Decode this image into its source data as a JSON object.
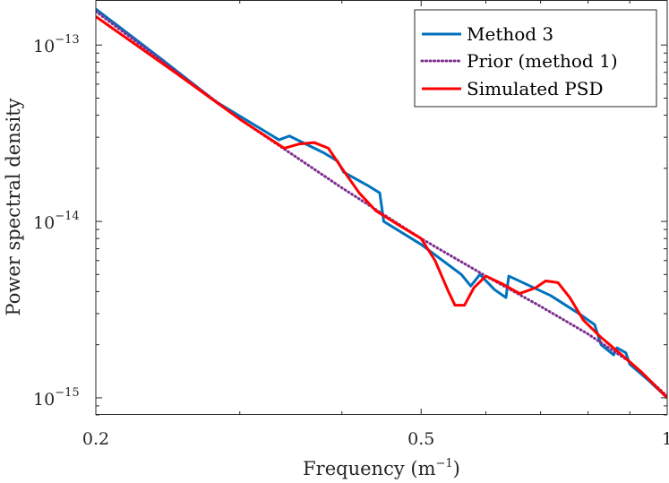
{
  "chart_data": {
    "type": "line",
    "xlabel": "Frequency",
    "xlabel_unit_base": "m",
    "xlabel_unit_exp": "−1",
    "ylabel": "Power spectral density",
    "xscale": "log",
    "yscale": "log",
    "xlim": [
      0.2,
      1.0
    ],
    "ylim": [
      8e-16,
      1.8e-13
    ],
    "grid": false,
    "legend_position": "top-right",
    "x_ticks": [
      {
        "value": 0.2,
        "label": "0.2"
      },
      {
        "value": 0.5,
        "label": "0.5"
      },
      {
        "value": 1.0,
        "label": "1"
      }
    ],
    "y_ticks": [
      {
        "value": 1e-13,
        "base": "10",
        "exp": "−13"
      },
      {
        "value": 1e-14,
        "base": "10",
        "exp": "−14"
      },
      {
        "value": 1e-15,
        "base": "10",
        "exp": "−15"
      }
    ],
    "series": [
      {
        "name": "Method 3",
        "color": "#0072BD",
        "style": "solid",
        "points": [
          [
            0.2,
            1.6e-13
          ],
          [
            0.24,
            8.4e-14
          ],
          [
            0.28,
            4.8e-14
          ],
          [
            0.32,
            3.3e-14
          ],
          [
            0.335,
            2.9e-14
          ],
          [
            0.345,
            3.05e-14
          ],
          [
            0.38,
            2.45e-14
          ],
          [
            0.395,
            2.2e-14
          ],
          [
            0.402,
            1.9e-14
          ],
          [
            0.43,
            1.6e-14
          ],
          [
            0.445,
            1.45e-14
          ],
          [
            0.45,
            1e-14
          ],
          [
            0.5,
            7.4e-15
          ],
          [
            0.56,
            5e-15
          ],
          [
            0.575,
            4.3e-15
          ],
          [
            0.59,
            5e-15
          ],
          [
            0.615,
            4.1e-15
          ],
          [
            0.635,
            3.7e-15
          ],
          [
            0.64,
            4.9e-15
          ],
          [
            0.72,
            3.8e-15
          ],
          [
            0.78,
            3e-15
          ],
          [
            0.815,
            2.6e-15
          ],
          [
            0.83,
            2e-15
          ],
          [
            0.86,
            1.75e-15
          ],
          [
            0.868,
            1.92e-15
          ],
          [
            0.89,
            1.8e-15
          ],
          [
            0.9,
            1.55e-15
          ],
          [
            0.95,
            1.25e-15
          ],
          [
            1.0,
            1e-15
          ]
        ]
      },
      {
        "name": "Prior (method 1)",
        "color": "#7E2F8E",
        "style": "dotted",
        "points": [
          [
            0.2,
            1.55e-13
          ],
          [
            0.3,
            3.8e-14
          ],
          [
            0.4,
            1.55e-14
          ],
          [
            0.5,
            8e-15
          ],
          [
            0.6,
            4.9e-15
          ],
          [
            0.7,
            3.3e-15
          ],
          [
            0.8,
            2.3e-15
          ],
          [
            0.9,
            1.6e-15
          ],
          [
            1.0,
            1.02e-15
          ]
        ]
      },
      {
        "name": "Simulated PSD",
        "color": "#FF0000",
        "style": "solid",
        "points": [
          [
            0.2,
            1.45e-13
          ],
          [
            0.25,
            7e-14
          ],
          [
            0.3,
            3.8e-14
          ],
          [
            0.34,
            2.6e-14
          ],
          [
            0.355,
            2.75e-14
          ],
          [
            0.37,
            2.8e-14
          ],
          [
            0.385,
            2.6e-14
          ],
          [
            0.4,
            2e-14
          ],
          [
            0.42,
            1.45e-14
          ],
          [
            0.44,
            1.15e-14
          ],
          [
            0.47,
            9.5e-15
          ],
          [
            0.5,
            8e-15
          ],
          [
            0.52,
            6e-15
          ],
          [
            0.54,
            4e-15
          ],
          [
            0.55,
            3.35e-15
          ],
          [
            0.565,
            3.35e-15
          ],
          [
            0.58,
            4.2e-15
          ],
          [
            0.6,
            4.9e-15
          ],
          [
            0.63,
            4.4e-15
          ],
          [
            0.66,
            3.9e-15
          ],
          [
            0.69,
            4.2e-15
          ],
          [
            0.71,
            4.6e-15
          ],
          [
            0.735,
            4.5e-15
          ],
          [
            0.76,
            3.7e-15
          ],
          [
            0.79,
            2.75e-15
          ],
          [
            0.83,
            2.2e-15
          ],
          [
            0.88,
            1.75e-15
          ],
          [
            0.93,
            1.4e-15
          ],
          [
            1.0,
            1e-15
          ]
        ]
      }
    ]
  }
}
